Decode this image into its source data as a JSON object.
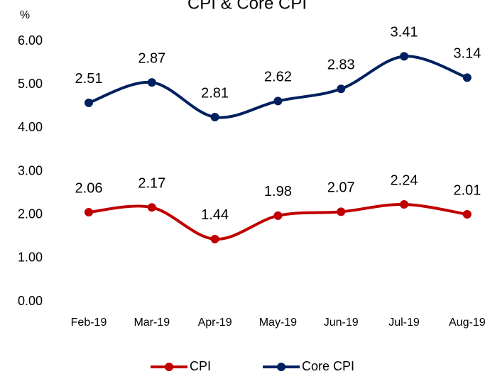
{
  "chart_data": {
    "type": "line",
    "title": "CPI & Core CPI",
    "y_label": "%",
    "categories": [
      "Feb-19",
      "Mar-19",
      "Apr-19",
      "May-19",
      "Jun-19",
      "Jul-19",
      "Aug-19"
    ],
    "series": [
      {
        "name": "CPI",
        "color": "#c00000",
        "values": [
          2.06,
          2.17,
          1.44,
          1.98,
          2.07,
          2.24,
          2.01
        ],
        "value_labels": [
          "2.06",
          "2.17",
          "1.44",
          "1.98",
          "2.07",
          "2.24",
          "2.01"
        ]
      },
      {
        "name": "Core CPI",
        "color": "#002060",
        "values": [
          4.58,
          5.05,
          4.25,
          4.62,
          4.9,
          5.65,
          5.16
        ]
      }
    ],
    "annotations": [
      "2.51",
      "2.87",
      "2.81",
      "2.62",
      "2.83",
      "3.41",
      "3.14"
    ],
    "ylim": [
      0,
      6
    ],
    "yticks": [
      {
        "value": 0,
        "label": "0.00"
      },
      {
        "value": 1,
        "label": "1.00"
      },
      {
        "value": 2,
        "label": "2.00"
      },
      {
        "value": 3,
        "label": "3.00"
      },
      {
        "value": 4,
        "label": "4.00"
      },
      {
        "value": 5,
        "label": "5.00"
      },
      {
        "value": 6,
        "label": "6.00"
      }
    ],
    "grid": false,
    "legend": "bottom"
  }
}
